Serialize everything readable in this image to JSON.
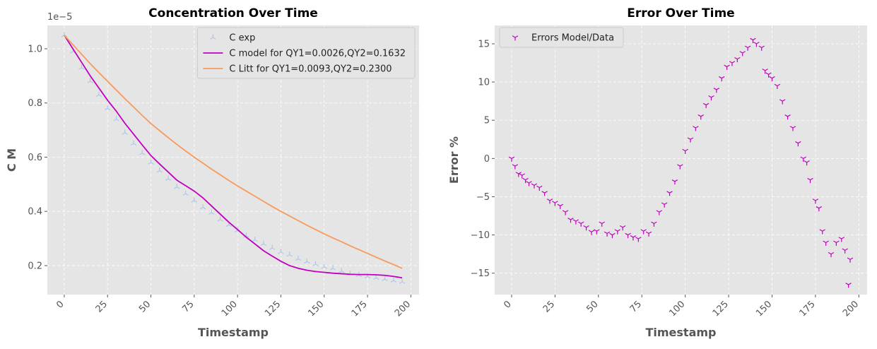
{
  "chart_data": [
    {
      "type": "line",
      "title": "Concentration Over Time",
      "xlabel": "Timestamp",
      "ylabel": "C M",
      "y_offset_label": "1e−5",
      "xlim": [
        -9.75,
        204.75
      ],
      "ylim": [
        0.093,
        1.086
      ],
      "xticks": [
        0,
        25,
        50,
        75,
        100,
        125,
        150,
        175,
        200
      ],
      "yticks": [
        0.2,
        0.4,
        0.6,
        0.8,
        {
          "value": 1.0,
          "label": "1.0"
        }
      ],
      "grid": true,
      "legend": "upper right",
      "series": [
        {
          "name": "C exp",
          "type": "scatter",
          "marker": "tri_up",
          "color": "#aec7e8",
          "x": [
            0,
            5,
            10,
            15,
            20,
            25,
            30,
            35,
            40,
            45,
            50,
            55,
            60,
            65,
            70,
            75,
            80,
            85,
            90,
            95,
            100,
            105,
            110,
            115,
            120,
            125,
            130,
            135,
            140,
            145,
            150,
            155,
            160,
            165,
            170,
            175,
            180,
            185,
            190,
            195
          ],
          "values": [
            1.05,
            0.99,
            0.93,
            0.88,
            0.83,
            0.78,
            0.74,
            0.69,
            0.65,
            0.615,
            0.58,
            0.55,
            0.52,
            0.49,
            0.465,
            0.44,
            0.415,
            0.395,
            0.37,
            0.35,
            0.33,
            0.31,
            0.295,
            0.28,
            0.265,
            0.25,
            0.24,
            0.225,
            0.215,
            0.205,
            0.195,
            0.19,
            0.18,
            0.17,
            0.165,
            0.16,
            0.155,
            0.15,
            0.145,
            0.14
          ]
        },
        {
          "name": "C model for QY1=0.0026,QY2=0.1632",
          "type": "line",
          "color": "#bf00bf",
          "x": [
            0,
            5,
            10,
            15,
            20,
            25,
            30,
            35,
            40,
            45,
            50,
            55,
            60,
            65,
            70,
            75,
            80,
            85,
            90,
            95,
            100,
            105,
            110,
            115,
            120,
            125,
            130,
            135,
            140,
            145,
            150,
            155,
            160,
            165,
            170,
            175,
            180,
            185,
            190,
            195
          ],
          "values": [
            1.05,
            1.0,
            0.95,
            0.9,
            0.855,
            0.81,
            0.77,
            0.725,
            0.685,
            0.645,
            0.606,
            0.575,
            0.545,
            0.515,
            0.495,
            0.475,
            0.45,
            0.42,
            0.39,
            0.36,
            0.333,
            0.305,
            0.28,
            0.255,
            0.235,
            0.216,
            0.2,
            0.19,
            0.183,
            0.178,
            0.175,
            0.172,
            0.17,
            0.168,
            0.167,
            0.167,
            0.166,
            0.164,
            0.16,
            0.155
          ]
        },
        {
          "name": "C Litt for QY1=0.0093,QY2=0.2300",
          "type": "line",
          "color": "#f79a5b",
          "x": [
            0,
            5,
            10,
            15,
            20,
            25,
            30,
            35,
            40,
            45,
            50,
            55,
            60,
            65,
            70,
            75,
            80,
            85,
            90,
            95,
            100,
            105,
            110,
            115,
            120,
            125,
            130,
            135,
            140,
            145,
            150,
            155,
            160,
            165,
            170,
            175,
            180,
            185,
            190,
            195
          ],
          "values": [
            1.05,
            1.015,
            0.98,
            0.945,
            0.912,
            0.88,
            0.848,
            0.816,
            0.785,
            0.754,
            0.724,
            0.698,
            0.672,
            0.647,
            0.623,
            0.6,
            0.578,
            0.556,
            0.535,
            0.514,
            0.494,
            0.475,
            0.456,
            0.437,
            0.418,
            0.4,
            0.383,
            0.366,
            0.349,
            0.333,
            0.317,
            0.302,
            0.288,
            0.273,
            0.259,
            0.245,
            0.231,
            0.217,
            0.204,
            0.19
          ]
        }
      ]
    },
    {
      "type": "scatter",
      "title": "Error Over Time",
      "xlabel": "Timestamp",
      "ylabel": "Error %",
      "xlim": [
        -9.75,
        204.75
      ],
      "ylim": [
        -17.8,
        17.4
      ],
      "xticks": [
        0,
        25,
        50,
        75,
        100,
        125,
        150,
        175,
        200
      ],
      "yticks": [
        {
          "value": -15,
          "label": "−15"
        },
        {
          "value": -10,
          "label": "−10"
        },
        {
          "value": -5,
          "label": "−5"
        },
        0,
        5,
        10,
        15
      ],
      "grid": true,
      "legend": "upper left",
      "series": [
        {
          "name": "Errors Model/Data",
          "type": "scatter",
          "marker": "tri_down",
          "color": "#bf00bf",
          "x": [
            0,
            2,
            4,
            6,
            8,
            10,
            13,
            16,
            19,
            22,
            25,
            28,
            31,
            34,
            37,
            40,
            43,
            46,
            49,
            52,
            55,
            58,
            61,
            64,
            67,
            70,
            73,
            76,
            79,
            82,
            85,
            88,
            91,
            94,
            97,
            100,
            103,
            106,
            109,
            112,
            115,
            118,
            121,
            124,
            127,
            130,
            133,
            136,
            139,
            141,
            144,
            146,
            148,
            150,
            153,
            156,
            159,
            162,
            165,
            168,
            170,
            172,
            175,
            177,
            179,
            181,
            184,
            187,
            190,
            192,
            194,
            195
          ],
          "values": [
            0,
            -1,
            -2,
            -2.2,
            -2.8,
            -3.2,
            -3.5,
            -3.8,
            -4.5,
            -5.5,
            -5.8,
            -6.2,
            -7,
            -8,
            -8.2,
            -8.5,
            -9,
            -9.6,
            -9.5,
            -8.5,
            -9.8,
            -10,
            -9.5,
            -9,
            -10,
            -10.3,
            -10.5,
            -9.5,
            -9.8,
            -8.5,
            -7,
            -6,
            -4.5,
            -3,
            -1,
            1,
            2.5,
            4,
            5.5,
            7,
            8,
            9,
            10.5,
            12,
            12.5,
            13,
            13.8,
            14.5,
            15.5,
            15,
            14.5,
            11.5,
            11,
            10.5,
            9.5,
            7.5,
            5.5,
            4,
            2,
            0,
            -0.5,
            -2.8,
            -5.5,
            -6.5,
            -9.5,
            -11,
            -12.5,
            -11,
            -10.5,
            -12,
            -16.5,
            -13.2
          ]
        }
      ]
    }
  ]
}
